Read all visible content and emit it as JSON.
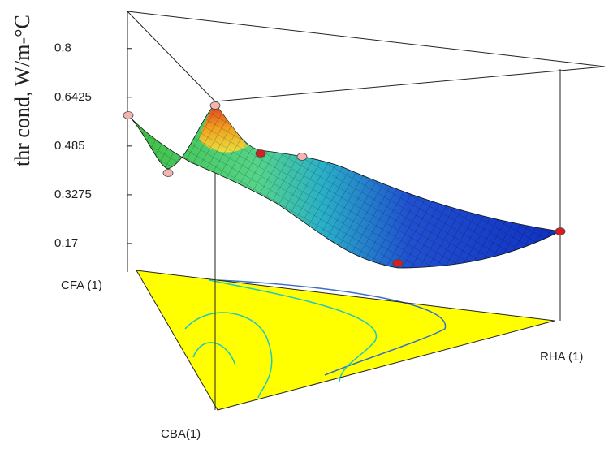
{
  "chart_data": {
    "type": "surface3d",
    "zlabel": "thr cond, W/m-°C",
    "corner_labels": [
      "CFA (1)",
      "RHA (1)",
      "CBA(1)"
    ],
    "zlim": [
      0.078,
      0.92
    ],
    "zticks": [
      0.17,
      0.3275,
      0.485,
      0.6425,
      0.8
    ],
    "points": {
      "values": [
        0.585,
        0.42,
        0.64,
        0.48,
        0.47,
        0.15,
        0.2
      ],
      "colors": [
        "#f4b4b0",
        "#f4b4b0",
        "#f4b4b0",
        "#d81e1e",
        "#f4b4b0",
        "#d81e1e",
        "#d81e1e"
      ]
    }
  }
}
